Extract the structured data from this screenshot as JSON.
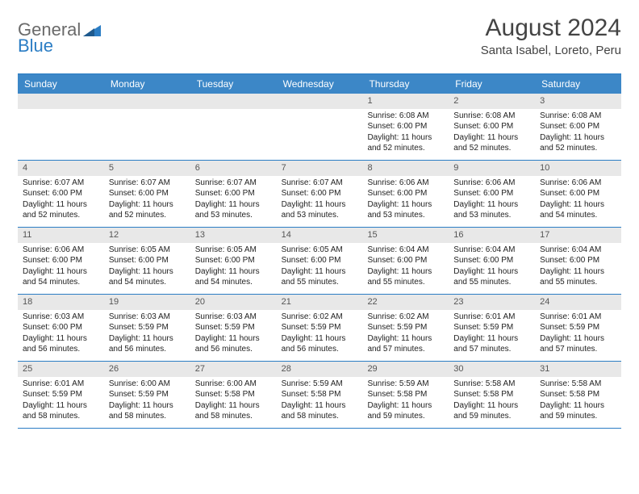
{
  "brand": {
    "part1": "General",
    "part2": "Blue"
  },
  "title": "August 2024",
  "location": "Santa Isabel, Loreto, Peru",
  "colors": {
    "header_bg": "#3c87c7",
    "header_text": "#ffffff",
    "border": "#2b7dc4",
    "daynum_bg": "#e8e8e8",
    "body_text": "#222222",
    "brand_gray": "#6a6a6a",
    "brand_blue": "#2b7dc4"
  },
  "day_labels": [
    "Sunday",
    "Monday",
    "Tuesday",
    "Wednesday",
    "Thursday",
    "Friday",
    "Saturday"
  ],
  "weeks": [
    [
      {
        "num": "",
        "sunrise": "",
        "sunset": "",
        "daylight": ""
      },
      {
        "num": "",
        "sunrise": "",
        "sunset": "",
        "daylight": ""
      },
      {
        "num": "",
        "sunrise": "",
        "sunset": "",
        "daylight": ""
      },
      {
        "num": "",
        "sunrise": "",
        "sunset": "",
        "daylight": ""
      },
      {
        "num": "1",
        "sunrise": "Sunrise: 6:08 AM",
        "sunset": "Sunset: 6:00 PM",
        "daylight": "Daylight: 11 hours and 52 minutes."
      },
      {
        "num": "2",
        "sunrise": "Sunrise: 6:08 AM",
        "sunset": "Sunset: 6:00 PM",
        "daylight": "Daylight: 11 hours and 52 minutes."
      },
      {
        "num": "3",
        "sunrise": "Sunrise: 6:08 AM",
        "sunset": "Sunset: 6:00 PM",
        "daylight": "Daylight: 11 hours and 52 minutes."
      }
    ],
    [
      {
        "num": "4",
        "sunrise": "Sunrise: 6:07 AM",
        "sunset": "Sunset: 6:00 PM",
        "daylight": "Daylight: 11 hours and 52 minutes."
      },
      {
        "num": "5",
        "sunrise": "Sunrise: 6:07 AM",
        "sunset": "Sunset: 6:00 PM",
        "daylight": "Daylight: 11 hours and 52 minutes."
      },
      {
        "num": "6",
        "sunrise": "Sunrise: 6:07 AM",
        "sunset": "Sunset: 6:00 PM",
        "daylight": "Daylight: 11 hours and 53 minutes."
      },
      {
        "num": "7",
        "sunrise": "Sunrise: 6:07 AM",
        "sunset": "Sunset: 6:00 PM",
        "daylight": "Daylight: 11 hours and 53 minutes."
      },
      {
        "num": "8",
        "sunrise": "Sunrise: 6:06 AM",
        "sunset": "Sunset: 6:00 PM",
        "daylight": "Daylight: 11 hours and 53 minutes."
      },
      {
        "num": "9",
        "sunrise": "Sunrise: 6:06 AM",
        "sunset": "Sunset: 6:00 PM",
        "daylight": "Daylight: 11 hours and 53 minutes."
      },
      {
        "num": "10",
        "sunrise": "Sunrise: 6:06 AM",
        "sunset": "Sunset: 6:00 PM",
        "daylight": "Daylight: 11 hours and 54 minutes."
      }
    ],
    [
      {
        "num": "11",
        "sunrise": "Sunrise: 6:06 AM",
        "sunset": "Sunset: 6:00 PM",
        "daylight": "Daylight: 11 hours and 54 minutes."
      },
      {
        "num": "12",
        "sunrise": "Sunrise: 6:05 AM",
        "sunset": "Sunset: 6:00 PM",
        "daylight": "Daylight: 11 hours and 54 minutes."
      },
      {
        "num": "13",
        "sunrise": "Sunrise: 6:05 AM",
        "sunset": "Sunset: 6:00 PM",
        "daylight": "Daylight: 11 hours and 54 minutes."
      },
      {
        "num": "14",
        "sunrise": "Sunrise: 6:05 AM",
        "sunset": "Sunset: 6:00 PM",
        "daylight": "Daylight: 11 hours and 55 minutes."
      },
      {
        "num": "15",
        "sunrise": "Sunrise: 6:04 AM",
        "sunset": "Sunset: 6:00 PM",
        "daylight": "Daylight: 11 hours and 55 minutes."
      },
      {
        "num": "16",
        "sunrise": "Sunrise: 6:04 AM",
        "sunset": "Sunset: 6:00 PM",
        "daylight": "Daylight: 11 hours and 55 minutes."
      },
      {
        "num": "17",
        "sunrise": "Sunrise: 6:04 AM",
        "sunset": "Sunset: 6:00 PM",
        "daylight": "Daylight: 11 hours and 55 minutes."
      }
    ],
    [
      {
        "num": "18",
        "sunrise": "Sunrise: 6:03 AM",
        "sunset": "Sunset: 6:00 PM",
        "daylight": "Daylight: 11 hours and 56 minutes."
      },
      {
        "num": "19",
        "sunrise": "Sunrise: 6:03 AM",
        "sunset": "Sunset: 5:59 PM",
        "daylight": "Daylight: 11 hours and 56 minutes."
      },
      {
        "num": "20",
        "sunrise": "Sunrise: 6:03 AM",
        "sunset": "Sunset: 5:59 PM",
        "daylight": "Daylight: 11 hours and 56 minutes."
      },
      {
        "num": "21",
        "sunrise": "Sunrise: 6:02 AM",
        "sunset": "Sunset: 5:59 PM",
        "daylight": "Daylight: 11 hours and 56 minutes."
      },
      {
        "num": "22",
        "sunrise": "Sunrise: 6:02 AM",
        "sunset": "Sunset: 5:59 PM",
        "daylight": "Daylight: 11 hours and 57 minutes."
      },
      {
        "num": "23",
        "sunrise": "Sunrise: 6:01 AM",
        "sunset": "Sunset: 5:59 PM",
        "daylight": "Daylight: 11 hours and 57 minutes."
      },
      {
        "num": "24",
        "sunrise": "Sunrise: 6:01 AM",
        "sunset": "Sunset: 5:59 PM",
        "daylight": "Daylight: 11 hours and 57 minutes."
      }
    ],
    [
      {
        "num": "25",
        "sunrise": "Sunrise: 6:01 AM",
        "sunset": "Sunset: 5:59 PM",
        "daylight": "Daylight: 11 hours and 58 minutes."
      },
      {
        "num": "26",
        "sunrise": "Sunrise: 6:00 AM",
        "sunset": "Sunset: 5:59 PM",
        "daylight": "Daylight: 11 hours and 58 minutes."
      },
      {
        "num": "27",
        "sunrise": "Sunrise: 6:00 AM",
        "sunset": "Sunset: 5:58 PM",
        "daylight": "Daylight: 11 hours and 58 minutes."
      },
      {
        "num": "28",
        "sunrise": "Sunrise: 5:59 AM",
        "sunset": "Sunset: 5:58 PM",
        "daylight": "Daylight: 11 hours and 58 minutes."
      },
      {
        "num": "29",
        "sunrise": "Sunrise: 5:59 AM",
        "sunset": "Sunset: 5:58 PM",
        "daylight": "Daylight: 11 hours and 59 minutes."
      },
      {
        "num": "30",
        "sunrise": "Sunrise: 5:58 AM",
        "sunset": "Sunset: 5:58 PM",
        "daylight": "Daylight: 11 hours and 59 minutes."
      },
      {
        "num": "31",
        "sunrise": "Sunrise: 5:58 AM",
        "sunset": "Sunset: 5:58 PM",
        "daylight": "Daylight: 11 hours and 59 minutes."
      }
    ]
  ]
}
